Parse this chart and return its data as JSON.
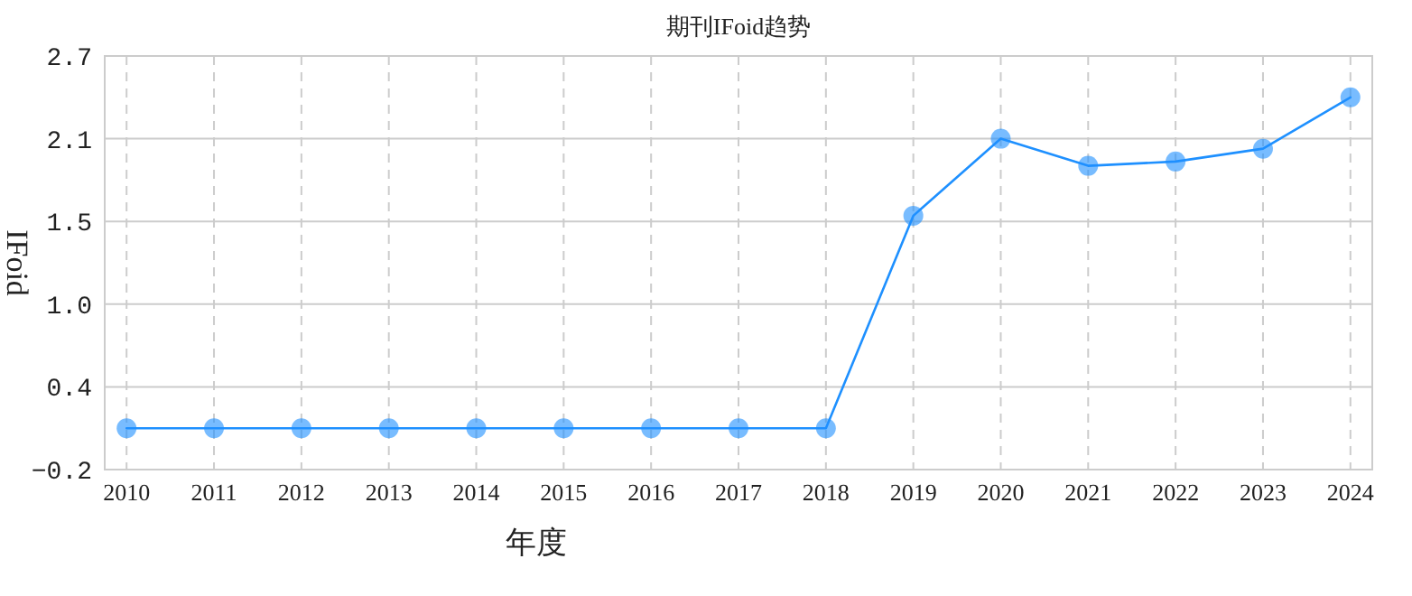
{
  "chart_data": {
    "type": "line",
    "title": "期刊IFoid趋势",
    "xlabel": "年度",
    "ylabel": "IFoid",
    "categories": [
      "2010",
      "2011",
      "2012",
      "2013",
      "2014",
      "2015",
      "2016",
      "2017",
      "2018",
      "2019",
      "2020",
      "2021",
      "2022",
      "2023",
      "2024"
    ],
    "series": [
      {
        "color": "#1e90ff",
        "values": [
          0.09,
          0.09,
          0.09,
          0.09,
          0.09,
          0.09,
          0.09,
          0.09,
          0.09,
          1.58,
          2.12,
          1.93,
          1.96,
          2.05,
          2.41
        ]
      }
    ],
    "ylim": [
      -0.2,
      2.7
    ],
    "yticks": [
      -0.2,
      {
        "value": 0.38,
        "label": "0.4"
      },
      {
        "value": 0.96,
        "label": "1.0"
      },
      {
        "value": 1.54,
        "label": "1.5"
      },
      {
        "value": 2.12,
        "label": "2.1"
      },
      2.7
    ],
    "grid": true,
    "marker": "circle",
    "line_style": "solid"
  }
}
